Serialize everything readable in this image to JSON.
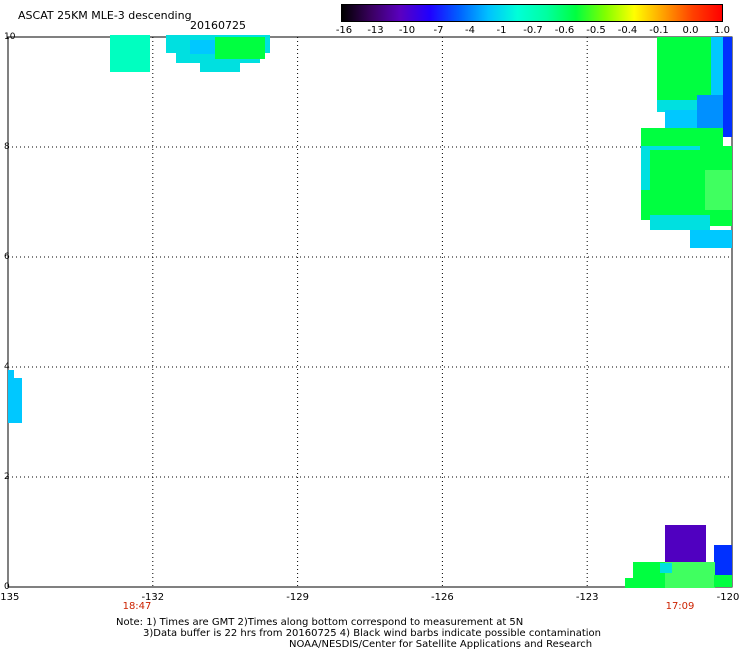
{
  "header": {
    "title": "ASCAT 25KM MLE-3 descending",
    "date": "20160725"
  },
  "colorbar": {
    "ticks": [
      "-16",
      "-13",
      "-10",
      "-7",
      "-4",
      "-1",
      "-0.7",
      "-0.6",
      "-0.5",
      "-0.4",
      "-0.1",
      "0.0",
      "1.0"
    ],
    "colors": [
      "#000000",
      "#3a0060",
      "#5a00c0",
      "#2000ff",
      "#0060ff",
      "#00c0ff",
      "#00ffd8",
      "#00ffa0",
      "#00ff40",
      "#80ff00",
      "#ffff00",
      "#ffa000",
      "#ff4000",
      "#ff0000"
    ]
  },
  "map": {
    "lon_range": [
      -135,
      -120
    ],
    "lat_range": [
      0,
      10
    ],
    "y_ticks": [
      "0",
      "2",
      "4",
      "6",
      "8",
      "10"
    ],
    "x_ticks": [
      "-135",
      "-132",
      "-129",
      "-126",
      "-123",
      "-120"
    ],
    "time_labels": [
      {
        "text": "18:47",
        "lon": -132.3
      },
      {
        "text": "17:09",
        "lon": -121.6
      }
    ]
  },
  "notes": {
    "line1": "Note: 1) Times are GMT 2)Times along bottom correspond to measurement at 5N",
    "line2": "3)Data buffer is 22 hrs from 20160725 4) Black wind barbs indicate possible contamination",
    "line3": "NOAA/NESDIS/Center for Satellite Applications and Research"
  }
}
